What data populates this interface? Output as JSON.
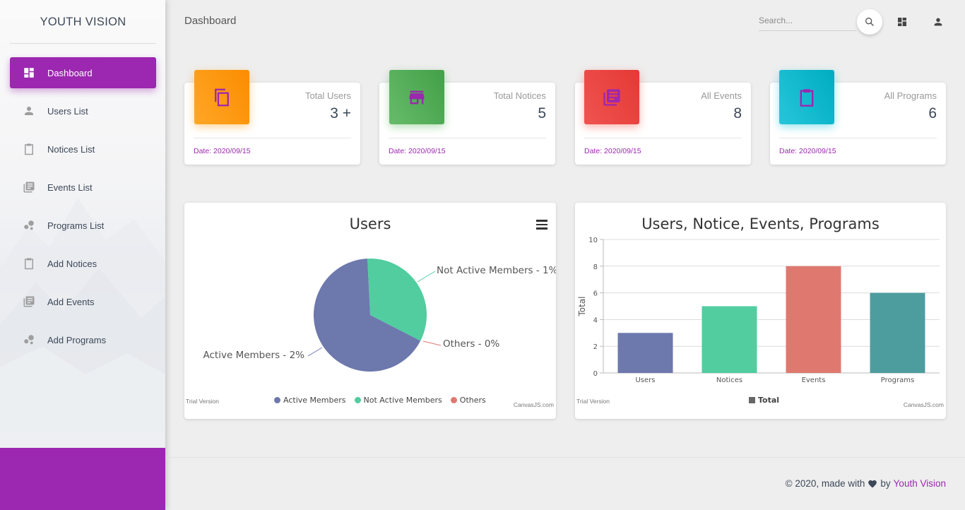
{
  "brand": "YOUTH VISION",
  "nav": [
    {
      "label": "Dashboard",
      "icon": "dashboard-icon",
      "active": true
    },
    {
      "label": "Users List",
      "icon": "person-icon"
    },
    {
      "label": "Notices List",
      "icon": "clipboard-icon"
    },
    {
      "label": "Events List",
      "icon": "library-books-icon"
    },
    {
      "label": "Programs List",
      "icon": "bubble-chart-icon"
    },
    {
      "label": "Add Notices",
      "icon": "clipboard-icon"
    },
    {
      "label": "Add Events",
      "icon": "library-books-icon"
    },
    {
      "label": "Add Programs",
      "icon": "bubble-chart-icon"
    }
  ],
  "header": {
    "title": "Dashboard",
    "search_placeholder": "Search..."
  },
  "stats": [
    {
      "label": "Total Users",
      "value": "3 +",
      "date": "Date: 2020/09/15",
      "color": "#fb8c00",
      "icon": "copy-icon"
    },
    {
      "label": "Total Notices",
      "value": "5",
      "date": "Date: 2020/09/15",
      "color": "#43a047",
      "icon": "store-icon"
    },
    {
      "label": "All Events",
      "value": "8",
      "date": "Date: 2020/09/15",
      "color": "#e53935",
      "icon": "library-books-icon"
    },
    {
      "label": "All Programs",
      "value": "6",
      "date": "Date: 2020/09/15",
      "color": "#00acc1",
      "icon": "clipboard-icon"
    }
  ],
  "pie_chart": {
    "title": "Users",
    "trial": "Trial Version",
    "credit": "CanvasJS.com"
  },
  "bar_chart": {
    "title": "Users, Notice, Events, Programs",
    "trial": "Trial Version",
    "credit": "CanvasJS.com"
  },
  "chart_data": [
    {
      "type": "pie",
      "title": "Users",
      "slices": [
        {
          "label": "Active Members",
          "value": 2,
          "display": "Active Members - 2%",
          "color": "#6d78ad"
        },
        {
          "label": "Not Active Members",
          "value": 1,
          "display": "Not Active Members - 1%",
          "color": "#51cda0"
        },
        {
          "label": "Others",
          "value": 0,
          "display": "Others - 0%",
          "color": "#df7970"
        }
      ],
      "legend": [
        "Active Members",
        "Not Active Members",
        "Others"
      ]
    },
    {
      "type": "bar",
      "title": "Users, Notice, Events, Programs",
      "categories": [
        "Users",
        "Notices",
        "Events",
        "Programs"
      ],
      "series": [
        {
          "name": "Total",
          "values": [
            3,
            5,
            8,
            6
          ]
        }
      ],
      "colors": [
        "#6d78ad",
        "#51cda0",
        "#df7970",
        "#4d9d9f"
      ],
      "ylabel": "Total",
      "xlabel": "",
      "ylim": [
        0,
        10
      ],
      "yticks": [
        0,
        2,
        4,
        6,
        8,
        10
      ],
      "legend": [
        "Total"
      ]
    }
  ],
  "footer": {
    "text": "© 2020, made with",
    "by": "by",
    "link": "Youth Vision"
  }
}
